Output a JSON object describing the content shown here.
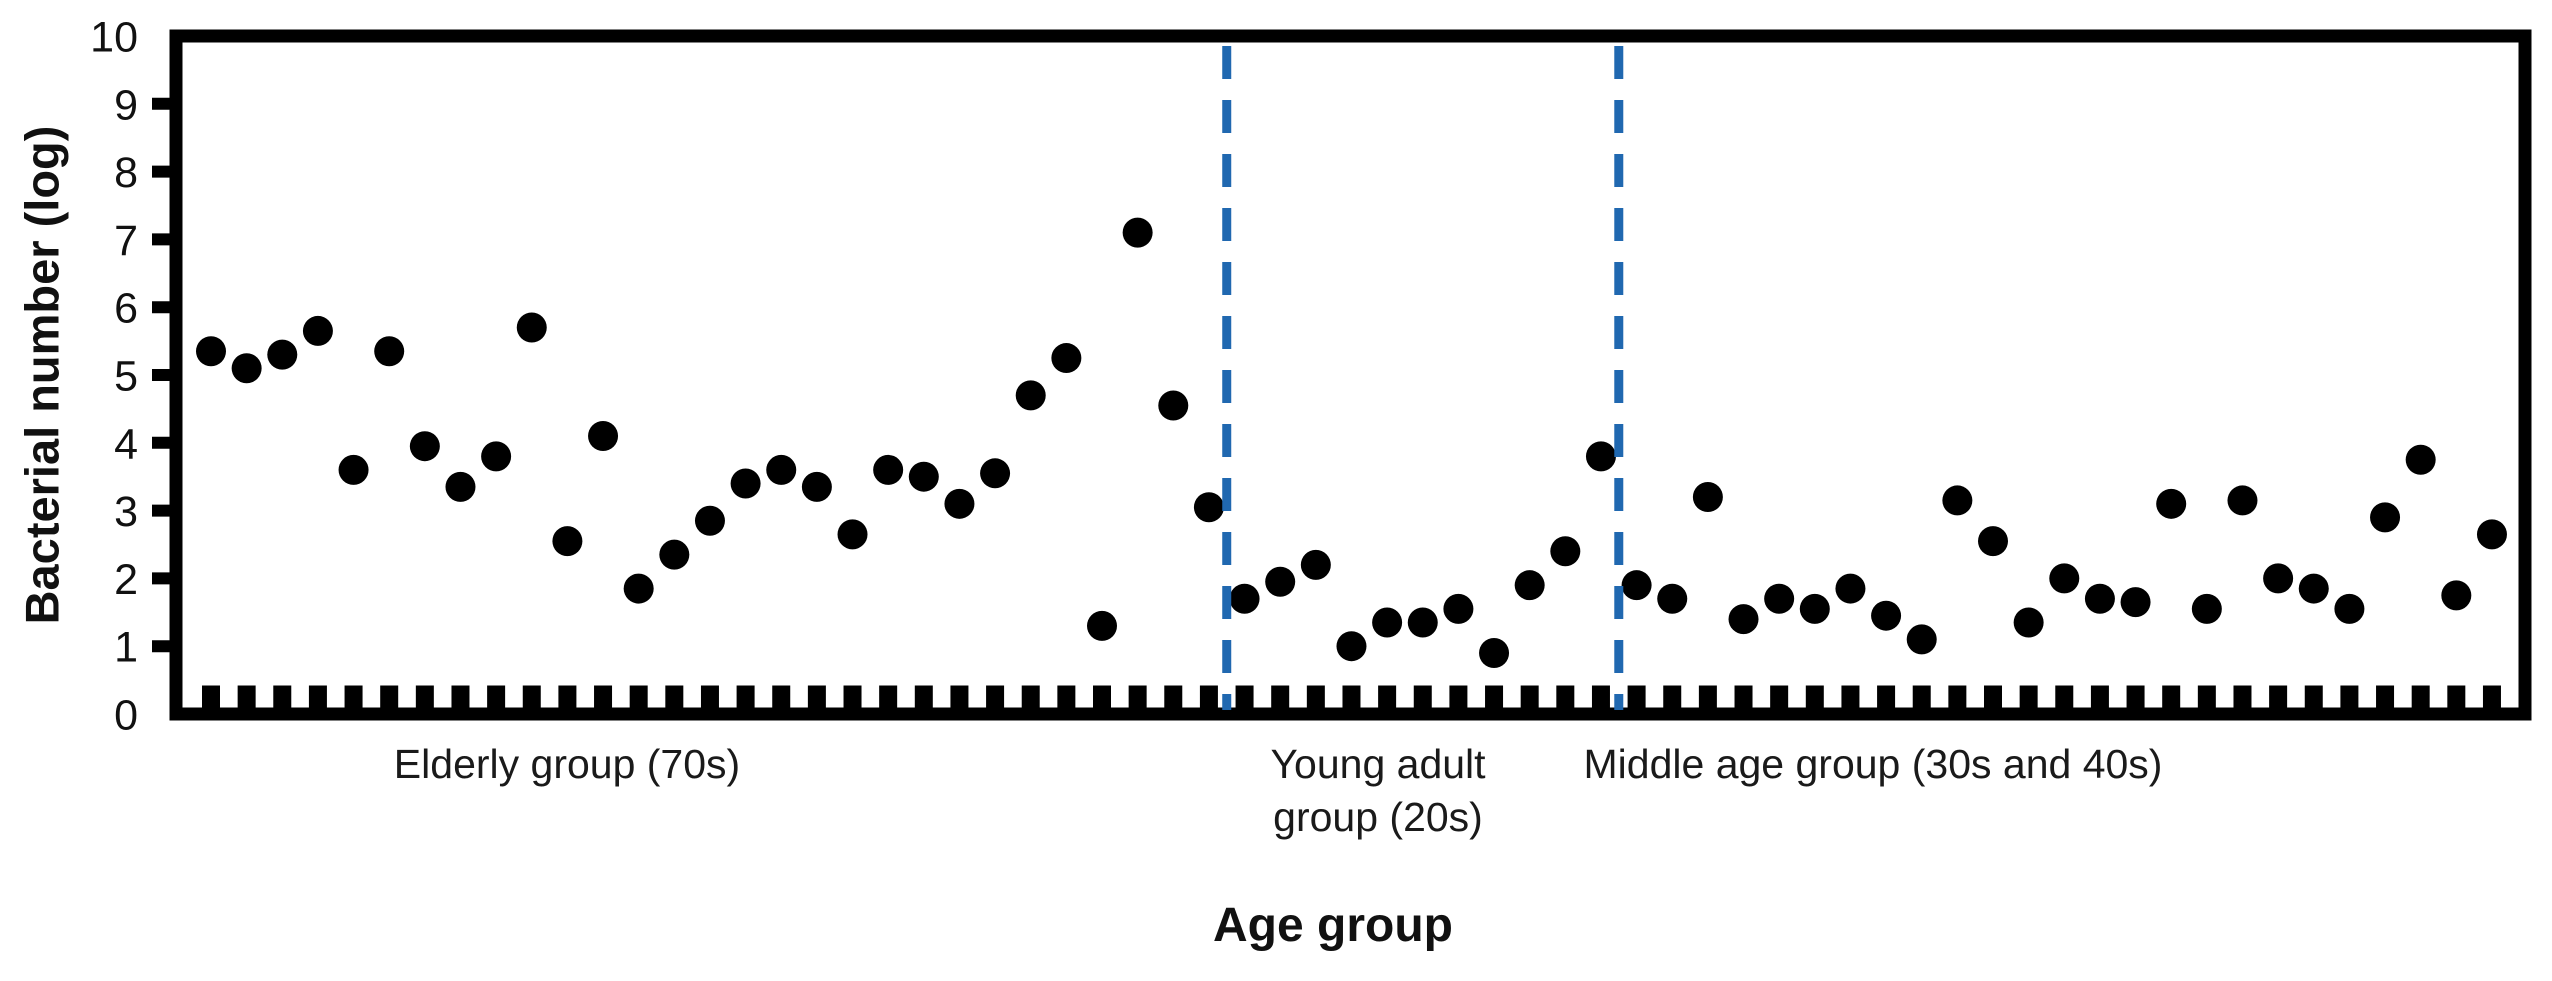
{
  "figure": {
    "background_color": "#ffffff",
    "axis_color": "#000000",
    "y_tick_labels": [
      "0",
      "1",
      "2",
      "3",
      "4",
      "5",
      "6",
      "7",
      "8",
      "9",
      "10"
    ],
    "group_labels": [
      {
        "lines": [
          "Elderly group (70s)"
        ]
      },
      {
        "lines": [
          "Young adult",
          "group (20s)"
        ]
      },
      {
        "lines": [
          "Middle age group (30s and 40s)"
        ]
      }
    ]
  },
  "chart_data": {
    "type": "scatter",
    "title": "",
    "xlabel": "Age group",
    "ylabel": "Bacterial number (log)",
    "ylim": [
      0,
      10
    ],
    "y_tick_step": 1,
    "grid": false,
    "legend": "none",
    "point_color": "#000000",
    "separator_color": "#2068b0",
    "separator_style": "dashed",
    "separators_between_samples": [
      [
        29,
        30
      ],
      [
        40,
        41
      ]
    ],
    "x_unit": "sample index (one tick per subject)",
    "series": [
      {
        "name": "Elderly group (70s)",
        "sample_index": [
          1,
          2,
          3,
          4,
          5,
          6,
          7,
          8,
          9,
          10,
          11,
          12,
          13,
          14,
          15,
          16,
          17,
          18,
          19,
          20,
          21,
          22,
          23,
          24,
          25,
          26,
          27,
          28,
          29
        ],
        "y": [
          5.35,
          5.1,
          5.3,
          5.65,
          3.6,
          5.35,
          3.95,
          3.35,
          3.8,
          5.7,
          2.55,
          4.1,
          1.85,
          2.35,
          2.85,
          3.4,
          3.6,
          3.35,
          2.65,
          3.6,
          3.5,
          3.1,
          3.55,
          4.7,
          5.25,
          1.3,
          7.1,
          4.55,
          3.05
        ]
      },
      {
        "name": "Young adult group (20s)",
        "sample_index": [
          30,
          31,
          32,
          33,
          34,
          35,
          36,
          37,
          38,
          39,
          40
        ],
        "y": [
          1.7,
          1.95,
          2.2,
          1.0,
          1.35,
          1.35,
          1.55,
          0.9,
          1.9,
          2.4,
          3.8
        ]
      },
      {
        "name": "Middle age group (30s and 40s)",
        "sample_index": [
          41,
          42,
          43,
          44,
          45,
          46,
          47,
          48,
          49,
          50,
          51,
          52,
          53,
          54,
          55,
          56,
          57,
          58,
          59,
          60,
          61,
          62,
          63,
          64,
          65
        ],
        "y": [
          1.9,
          1.7,
          3.2,
          1.4,
          1.7,
          1.55,
          1.85,
          1.45,
          1.1,
          3.15,
          2.55,
          1.35,
          2.0,
          1.7,
          1.65,
          3.1,
          1.55,
          3.15,
          2.0,
          1.85,
          1.55,
          2.9,
          3.75,
          1.75,
          2.65
        ]
      }
    ]
  }
}
